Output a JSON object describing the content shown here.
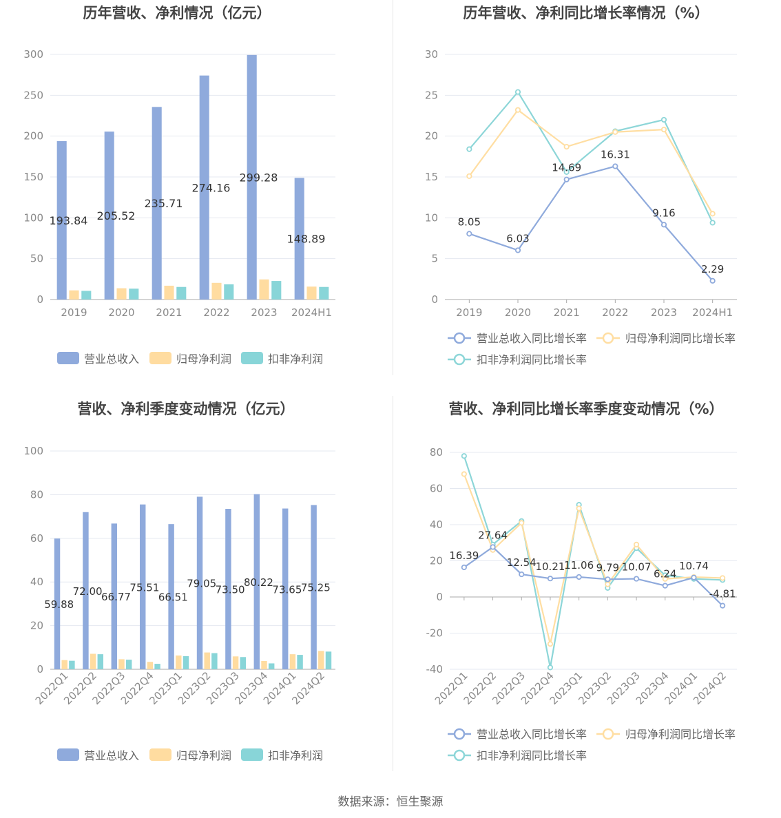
{
  "source_label": "数据来源：恒生聚源",
  "colors": {
    "revenue": "#8faadc",
    "net_profit": "#ffdea2",
    "deducted_profit": "#8dd6d8",
    "rev_bar": "#8faadc",
    "np_bar": "#ffdca0",
    "dp_bar": "#88d5d8"
  },
  "chart_data": [
    {
      "id": "annual-values",
      "type": "bar",
      "title": "历年营收、净利情况（亿元）",
      "categories": [
        "2019",
        "2020",
        "2021",
        "2022",
        "2023",
        "2024H1"
      ],
      "ylim": [
        0,
        300
      ],
      "yticks": [
        0,
        50,
        100,
        150,
        200,
        250,
        300
      ],
      "series": [
        {
          "name": "营业总收入",
          "color_key": "rev_bar",
          "values": [
            193.84,
            205.52,
            235.71,
            274.16,
            299.28,
            148.89
          ],
          "labels": [
            "193.84",
            "205.52",
            "235.71",
            "274.16",
            "299.28",
            "148.89"
          ]
        },
        {
          "name": "归母净利润",
          "color_key": "np_bar",
          "values": [
            11.2,
            13.8,
            16.9,
            20.4,
            24.6,
            15.8
          ],
          "labels": null
        },
        {
          "name": "扣非净利润",
          "color_key": "dp_bar",
          "values": [
            10.6,
            13.3,
            15.4,
            18.6,
            22.7,
            15.4
          ],
          "labels": null
        }
      ]
    },
    {
      "id": "annual-growth",
      "type": "line",
      "title": "历年营收、净利同比增长率情况（%）",
      "categories": [
        "2019",
        "2020",
        "2021",
        "2022",
        "2023",
        "2024H1"
      ],
      "ylim": [
        0,
        30
      ],
      "yticks": [
        0,
        5,
        10,
        15,
        20,
        25,
        30
      ],
      "series": [
        {
          "name": "营业总收入同比增长率",
          "color_key": "revenue",
          "values": [
            8.05,
            6.03,
            14.69,
            16.31,
            9.16,
            2.29
          ],
          "labels": [
            "8.05",
            "6.03",
            "14.69",
            "16.31",
            "9.16",
            "2.29"
          ]
        },
        {
          "name": "归母净利润同比增长率",
          "color_key": "net_profit",
          "values": [
            15.1,
            23.2,
            18.7,
            20.5,
            20.8,
            10.5
          ],
          "labels": null
        },
        {
          "name": "扣非净利润同比增长率",
          "color_key": "deducted_profit",
          "values": [
            18.4,
            25.4,
            15.6,
            20.6,
            22.0,
            9.4
          ],
          "labels": null
        }
      ]
    },
    {
      "id": "quarterly-values",
      "type": "bar",
      "title": "营收、净利季度变动情况（亿元）",
      "categories": [
        "2022Q1",
        "2022Q2",
        "2022Q3",
        "2022Q4",
        "2023Q1",
        "2023Q2",
        "2023Q3",
        "2023Q4",
        "2024Q1",
        "2024Q2"
      ],
      "ylim": [
        0,
        100
      ],
      "yticks": [
        0,
        20,
        40,
        60,
        80,
        100
      ],
      "series": [
        {
          "name": "营业总收入",
          "color_key": "rev_bar",
          "values": [
            59.88,
            72.0,
            66.77,
            75.51,
            66.51,
            79.05,
            73.5,
            80.22,
            73.65,
            75.25
          ],
          "labels": [
            "59.88",
            "72.00",
            "66.77",
            "75.51",
            "66.51",
            "79.05",
            "73.50",
            "80.22",
            "73.65",
            "75.25"
          ]
        },
        {
          "name": "归母净利润",
          "color_key": "np_bar",
          "values": [
            4.2,
            7.1,
            4.6,
            3.4,
            6.3,
            7.7,
            5.9,
            3.8,
            6.9,
            8.4
          ],
          "labels": null
        },
        {
          "name": "扣非净利润",
          "color_key": "dp_bar",
          "values": [
            3.9,
            6.9,
            4.4,
            2.5,
            6.0,
            7.4,
            5.6,
            2.7,
            6.6,
            8.1
          ],
          "labels": null
        }
      ]
    },
    {
      "id": "quarterly-growth",
      "type": "line",
      "title": "营收、净利同比增长率季度变动情况（%）",
      "categories": [
        "2022Q1",
        "2022Q2",
        "2022Q3",
        "2022Q4",
        "2023Q1",
        "2023Q2",
        "2023Q3",
        "2023Q4",
        "2024Q1",
        "2024Q2"
      ],
      "ylim": [
        -40,
        80
      ],
      "yticks": [
        -40,
        -20,
        0,
        20,
        40,
        60,
        80
      ],
      "series": [
        {
          "name": "营业总收入同比增长率",
          "color_key": "revenue",
          "values": [
            16.39,
            27.64,
            12.54,
            10.21,
            11.06,
            9.79,
            10.07,
            6.24,
            10.74,
            -4.81
          ],
          "labels": [
            "16.39",
            "27.64",
            "12.54",
            "10.21",
            "11.06",
            "9.79",
            "10.07",
            "6.24",
            "10.74",
            "-4.81"
          ]
        },
        {
          "name": "归母净利润同比增长率",
          "color_key": "net_profit",
          "values": [
            68.0,
            26.0,
            41.0,
            -26.0,
            49.0,
            7.0,
            29.0,
            10.0,
            11.0,
            10.5
          ],
          "labels": null
        },
        {
          "name": "扣非净利润同比增长率",
          "color_key": "deducted_profit",
          "values": [
            78.0,
            29.0,
            42.0,
            -39.0,
            51.0,
            5.0,
            27.0,
            12.0,
            10.0,
            9.4
          ],
          "labels": null
        }
      ]
    }
  ]
}
